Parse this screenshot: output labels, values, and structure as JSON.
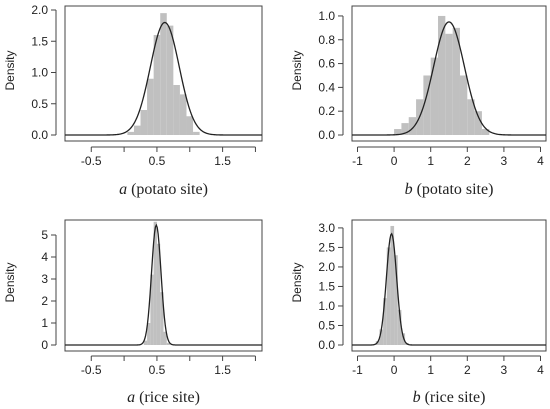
{
  "chart_data": [
    {
      "type": "histogram",
      "ylabel": "Density",
      "xlabel_var": "a",
      "xlabel_rest": " (potato site)",
      "xlim": [
        -0.9,
        2.1
      ],
      "ylim": [
        0,
        2.0
      ],
      "xticks": [
        -0.5,
        0,
        0.5,
        1,
        1.5,
        2
      ],
      "xtick_labels": [
        "-0.5",
        "",
        "0.5",
        "",
        "1.5",
        ""
      ],
      "yticks": [
        0,
        0.5,
        1.0,
        1.5,
        2.0
      ],
      "ytick_labels": [
        "0.0",
        "0.5",
        "1.0",
        "1.5",
        "2.0"
      ],
      "bins": [
        {
          "x0": 0.05,
          "x1": 0.15,
          "value": 0.05
        },
        {
          "x0": 0.15,
          "x1": 0.25,
          "value": 0.15
        },
        {
          "x0": 0.25,
          "x1": 0.35,
          "value": 0.4
        },
        {
          "x0": 0.35,
          "x1": 0.45,
          "value": 0.9
        },
        {
          "x0": 0.45,
          "x1": 0.55,
          "value": 1.6
        },
        {
          "x0": 0.55,
          "x1": 0.65,
          "value": 1.95
        },
        {
          "x0": 0.65,
          "x1": 0.75,
          "value": 1.75
        },
        {
          "x0": 0.75,
          "x1": 0.85,
          "value": 0.8
        },
        {
          "x0": 0.85,
          "x1": 0.95,
          "value": 0.65
        },
        {
          "x0": 0.95,
          "x1": 1.05,
          "value": 0.3
        },
        {
          "x0": 1.05,
          "x1": 1.15,
          "value": 0.05
        }
      ],
      "density_curve": {
        "distribution": "normal",
        "mean": 0.62,
        "sd": 0.22,
        "peak": 1.8
      }
    },
    {
      "type": "histogram",
      "ylabel": "Density",
      "xlabel_var": "b",
      "xlabel_rest": " (potato site)",
      "xlim": [
        -1.15,
        4.15
      ],
      "ylim": [
        0,
        1.05
      ],
      "xticks": [
        -1,
        0,
        1,
        2,
        3,
        4
      ],
      "xtick_labels": [
        "-1",
        "0",
        "1",
        "2",
        "3",
        "4"
      ],
      "yticks": [
        0,
        0.2,
        0.4,
        0.6,
        0.8,
        1.0
      ],
      "ytick_labels": [
        "0.0",
        "0.2",
        "0.4",
        "0.6",
        "0.8",
        "1.0"
      ],
      "bins": [
        {
          "x0": 0.0,
          "x1": 0.2,
          "value": 0.05
        },
        {
          "x0": 0.2,
          "x1": 0.4,
          "value": 0.1
        },
        {
          "x0": 0.4,
          "x1": 0.6,
          "value": 0.15
        },
        {
          "x0": 0.6,
          "x1": 0.8,
          "value": 0.3
        },
        {
          "x0": 0.8,
          "x1": 1.0,
          "value": 0.5
        },
        {
          "x0": 1.0,
          "x1": 1.2,
          "value": 0.65
        },
        {
          "x0": 1.2,
          "x1": 1.4,
          "value": 1.0
        },
        {
          "x0": 1.4,
          "x1": 1.6,
          "value": 0.85
        },
        {
          "x0": 1.6,
          "x1": 1.8,
          "value": 0.9
        },
        {
          "x0": 1.8,
          "x1": 2.0,
          "value": 0.5
        },
        {
          "x0": 2.0,
          "x1": 2.2,
          "value": 0.3
        },
        {
          "x0": 2.2,
          "x1": 2.4,
          "value": 0.2
        },
        {
          "x0": 2.4,
          "x1": 2.6,
          "value": 0.05
        }
      ],
      "density_curve": {
        "distribution": "normal",
        "mean": 1.5,
        "sd": 0.42,
        "peak": 0.95
      }
    },
    {
      "type": "histogram",
      "ylabel": "Density",
      "xlabel_var": "a",
      "xlabel_rest": " (rice site)",
      "xlim": [
        -0.9,
        2.1
      ],
      "ylim": [
        0,
        5.5
      ],
      "xticks": [
        -0.5,
        0,
        0.5,
        1,
        1.5,
        2
      ],
      "xtick_labels": [
        "-0.5",
        "",
        "0.5",
        "",
        "1.5",
        ""
      ],
      "yticks": [
        0,
        1,
        2,
        3,
        4,
        5
      ],
      "ytick_labels": [
        "0",
        "1",
        "2",
        "3",
        "4",
        "5"
      ],
      "bins": [
        {
          "x0": 0.3,
          "x1": 0.35,
          "value": 0.2
        },
        {
          "x0": 0.35,
          "x1": 0.4,
          "value": 1.0
        },
        {
          "x0": 0.4,
          "x1": 0.45,
          "value": 3.2
        },
        {
          "x0": 0.45,
          "x1": 0.5,
          "value": 5.6
        },
        {
          "x0": 0.5,
          "x1": 0.55,
          "value": 4.6
        },
        {
          "x0": 0.55,
          "x1": 0.6,
          "value": 2.4
        },
        {
          "x0": 0.6,
          "x1": 0.65,
          "value": 0.6
        },
        {
          "x0": 0.65,
          "x1": 0.7,
          "value": 0.1
        }
      ],
      "density_curve": {
        "distribution": "normal",
        "mean": 0.49,
        "sd": 0.072,
        "peak": 5.45
      }
    },
    {
      "type": "histogram",
      "ylabel": "Density",
      "xlabel_var": "b",
      "xlabel_rest": " (rice site)",
      "xlim": [
        -1.15,
        4.15
      ],
      "ylim": [
        0,
        3.1
      ],
      "xticks": [
        -1,
        0,
        1,
        2,
        3,
        4
      ],
      "xtick_labels": [
        "-1",
        "0",
        "1",
        "2",
        "3",
        "4"
      ],
      "yticks": [
        0,
        0.5,
        1.0,
        1.5,
        2.0,
        2.5,
        3.0
      ],
      "ytick_labels": [
        "0.0",
        "0.5",
        "1.0",
        "1.5",
        "2.0",
        "2.5",
        "3.0"
      ],
      "bins": [
        {
          "x0": -0.5,
          "x1": -0.4,
          "value": 0.1
        },
        {
          "x0": -0.4,
          "x1": -0.3,
          "value": 0.4
        },
        {
          "x0": -0.3,
          "x1": -0.2,
          "value": 1.2
        },
        {
          "x0": -0.2,
          "x1": -0.1,
          "value": 2.5
        },
        {
          "x0": -0.1,
          "x1": 0.0,
          "value": 3.05
        },
        {
          "x0": 0.0,
          "x1": 0.1,
          "value": 2.3
        },
        {
          "x0": 0.1,
          "x1": 0.2,
          "value": 0.9
        },
        {
          "x0": 0.2,
          "x1": 0.3,
          "value": 0.3
        },
        {
          "x0": 0.3,
          "x1": 0.4,
          "value": 0.05
        }
      ],
      "density_curve": {
        "distribution": "normal",
        "mean": -0.07,
        "sd": 0.14,
        "peak": 2.85
      }
    }
  ]
}
